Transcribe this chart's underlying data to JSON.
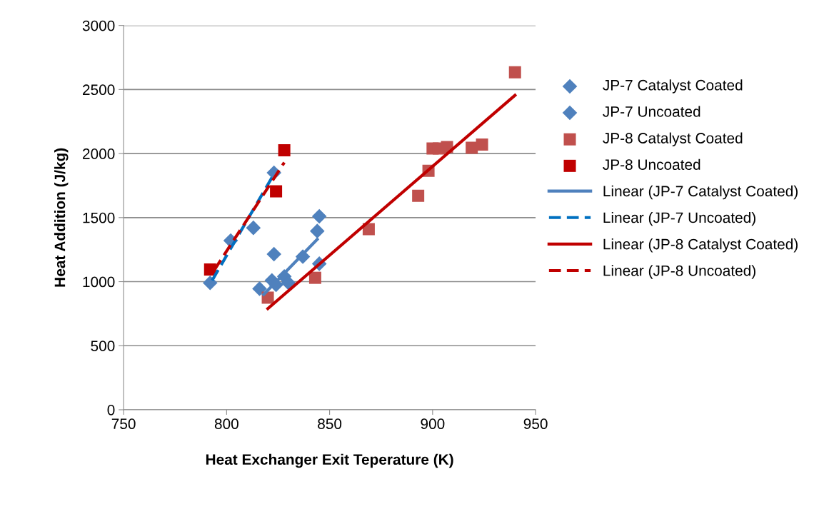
{
  "chart_data": {
    "type": "scatter",
    "xlabel": "Heat Exchanger Exit Teperature (K)",
    "ylabel": "Heat Addition (J/kg)",
    "xlim": [
      750,
      950
    ],
    "xticks": [
      750,
      800,
      850,
      900,
      950
    ],
    "ylim": [
      0,
      3000
    ],
    "yticks": [
      0,
      500,
      1000,
      1500,
      2000,
      2500,
      3000
    ],
    "grid": "y",
    "legend": "right",
    "series": [
      {
        "name": "JP-7 Catalyst Coated",
        "marker": "diamond",
        "color": "#4f81bd",
        "x": [
          816,
          822,
          823,
          824,
          828,
          830,
          837,
          844,
          845,
          845
        ],
        "values": [
          945,
          1010,
          1215,
          975,
          1040,
          990,
          1195,
          1395,
          1510,
          1140
        ]
      },
      {
        "name": "JP-7 Uncoated",
        "marker": "diamond",
        "color": "#4f81bd",
        "x": [
          792,
          802,
          813,
          823
        ],
        "values": [
          990,
          1320,
          1420,
          1850
        ]
      },
      {
        "name": "JP-8 Catalyst Coated",
        "marker": "square",
        "color": "#c0504d",
        "x": [
          820,
          843,
          869,
          893,
          898,
          900,
          903,
          907,
          919,
          924,
          940
        ],
        "values": [
          875,
          1030,
          1410,
          1670,
          1865,
          2040,
          2040,
          2050,
          2045,
          2070,
          2635
        ]
      },
      {
        "name": "JP-8 Uncoated",
        "marker": "square",
        "color": "#c00000",
        "x": [
          792,
          824,
          828
        ],
        "values": [
          1095,
          1705,
          2025
        ]
      },
      {
        "name": "Linear (JP-7 Catalyst Coated)",
        "type": "line",
        "line_style": "solid",
        "color": "#4f81bd",
        "x": [
          818,
          844
        ],
        "values": [
          900,
          1330
        ]
      },
      {
        "name": "Linear (JP-7 Uncoated)",
        "type": "line",
        "line_style": "dashed",
        "color": "#0070c0",
        "x": [
          793,
          823
        ],
        "values": [
          1010,
          1840
        ]
      },
      {
        "name": "Linear (JP-8 Catalyst Coated)",
        "type": "line",
        "line_style": "solid",
        "color": "#c00000",
        "x": [
          820,
          940
        ],
        "values": [
          790,
          2455
        ]
      },
      {
        "name": "Linear (JP-8 Uncoated)",
        "type": "line",
        "line_style": "dashed",
        "color": "#c00000",
        "x": [
          794,
          828
        ],
        "values": [
          1090,
          1930
        ]
      }
    ]
  }
}
